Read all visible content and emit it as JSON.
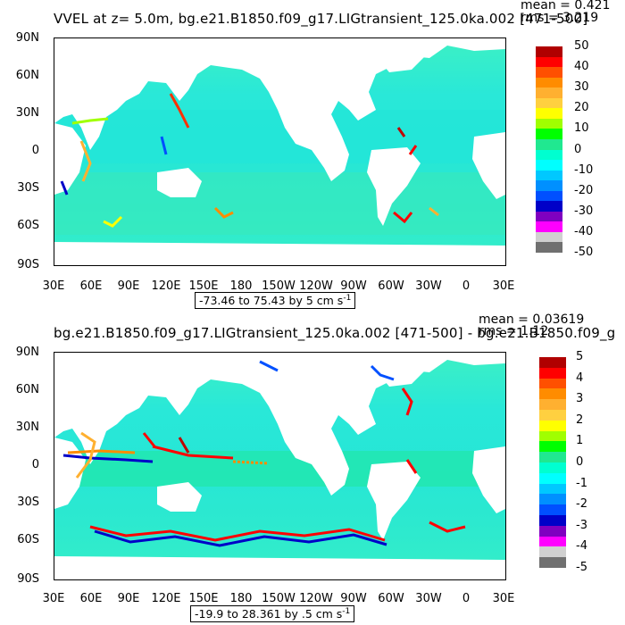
{
  "chart_data": [
    {
      "type": "heatmap",
      "title": "VVEL at z=    5.0m, bg.e21.B1850.f09_g17.LIGtransient_125.0ka.002 [471-500]",
      "mean": "mean = 0.421",
      "rms": "rms = 3.219",
      "range_text": "-73.46 to 75.43 by 5 cm s",
      "range_sup": "-1",
      "y_ticks": [
        "90N",
        "60N",
        "30N",
        "0",
        "30S",
        "60S",
        "90S"
      ],
      "x_ticks": [
        "30E",
        "60E",
        "90E",
        "120E",
        "150E",
        "180",
        "150W",
        "120W",
        "90W",
        "60W",
        "30W",
        "0",
        "30E"
      ],
      "colorbar": {
        "labels": [
          "50",
          "40",
          "30",
          "20",
          "10",
          "0",
          "-10",
          "-20",
          "-30",
          "-40",
          "-50"
        ],
        "colors": [
          "#b00000",
          "#ff0000",
          "#ff5000",
          "#ff8c00",
          "#ffb030",
          "#ffd040",
          "#ffff00",
          "#a0ff00",
          "#00ff00",
          "#20e890",
          "#00ffd0",
          "#00ffff",
          "#00c8ff",
          "#0090ff",
          "#0050ff",
          "#0000c8",
          "#8000c0",
          "#ff00ff",
          "#d0d0d0",
          "#707070"
        ]
      }
    },
    {
      "type": "heatmap",
      "title": "bg.e21.B1850.f09_g17.LIGtransient_125.0ka.002 [471-500] - bg.e21.B1850.f09_g",
      "mean": "mean = 0.03619",
      "rms": "rms = 1.12",
      "range_text": "-19.9 to 28.361 by .5 cm s",
      "range_sup": "-1",
      "y_ticks": [
        "90N",
        "60N",
        "30N",
        "0",
        "30S",
        "60S",
        "90S"
      ],
      "x_ticks": [
        "30E",
        "60E",
        "90E",
        "120E",
        "150E",
        "180",
        "150W",
        "120W",
        "90W",
        "60W",
        "30W",
        "0",
        "30E"
      ],
      "colorbar": {
        "labels": [
          "5",
          "4",
          "3",
          "2",
          "1",
          "0",
          "-1",
          "-2",
          "-3",
          "-4",
          "-5"
        ],
        "colors": [
          "#b00000",
          "#ff0000",
          "#ff5000",
          "#ff8c00",
          "#ffb030",
          "#ffd040",
          "#ffff00",
          "#a0ff00",
          "#00ff00",
          "#20e890",
          "#00ffd0",
          "#00ffff",
          "#00c8ff",
          "#0090ff",
          "#0050ff",
          "#0000c8",
          "#8000c0",
          "#ff00ff",
          "#d0d0d0",
          "#707070"
        ]
      }
    }
  ]
}
